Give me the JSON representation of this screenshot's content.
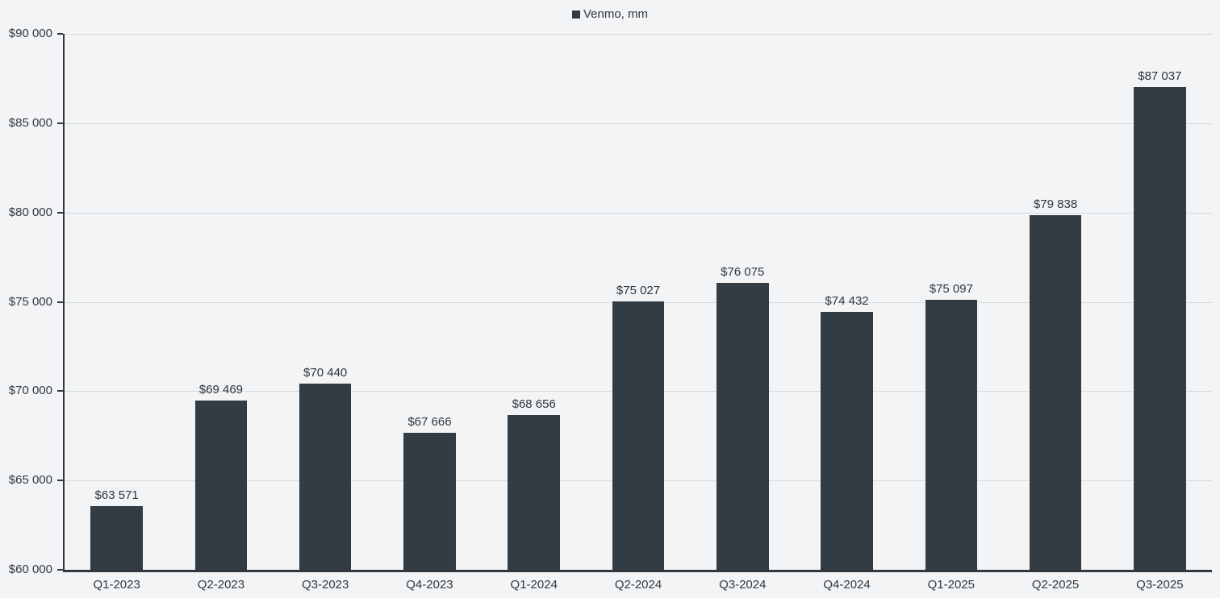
{
  "legend": {
    "label": "Venmo, mm"
  },
  "chart_data": {
    "type": "bar",
    "title": "",
    "xlabel": "",
    "ylabel": "",
    "series_name": "Venmo, mm",
    "categories": [
      "Q1-2023",
      "Q2-2023",
      "Q3-2023",
      "Q4-2023",
      "Q1-2024",
      "Q2-2024",
      "Q3-2024",
      "Q4-2024",
      "Q1-2025",
      "Q2-2025",
      "Q3-2025"
    ],
    "values": [
      63571,
      69469,
      70440,
      67666,
      68656,
      75027,
      76075,
      74432,
      75097,
      79838,
      87037
    ],
    "value_labels": [
      "$63 571",
      "$69 469",
      "$70 440",
      "$67 666",
      "$68 656",
      "$75 027",
      "$76 075",
      "$74 432",
      "$75 097",
      "$79 838",
      "$87 037"
    ],
    "ylim": [
      60000,
      90000
    ],
    "ytick_step": 5000,
    "ytick_labels": [
      "$60 000",
      "$65 000",
      "$70 000",
      "$75 000",
      "$80 000",
      "$85 000",
      "$90 000"
    ],
    "grid": true,
    "legend_position": "top-center",
    "colors": {
      "bar": "#333c42",
      "background": "#f2f4f6",
      "gridline": "#d7dadd",
      "axis": "#32383d",
      "text": "#333a3f"
    }
  }
}
